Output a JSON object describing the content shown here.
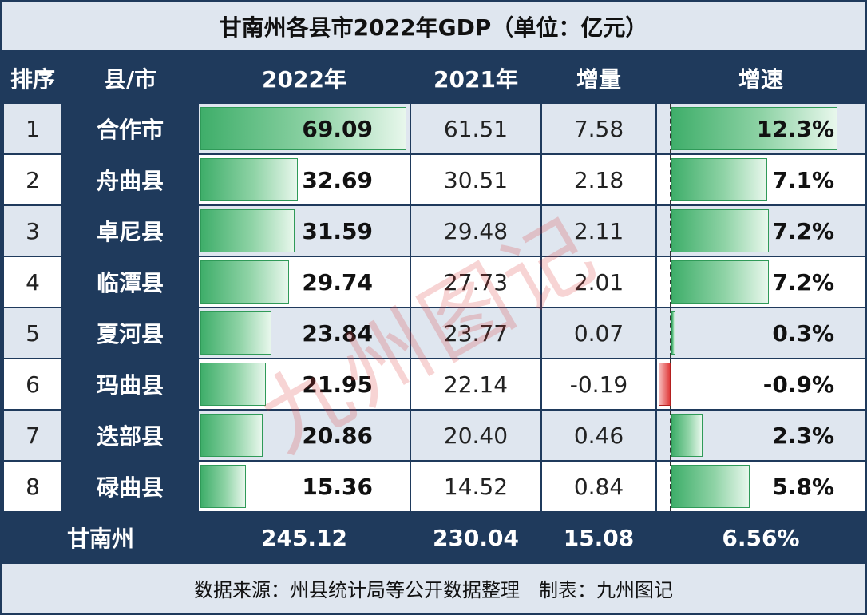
{
  "title": "甘南州各县市2022年GDP（单位：亿元）",
  "headers": [
    "排序",
    "县/市",
    "2022年",
    "2021年",
    "增量",
    "增速"
  ],
  "rows": [
    {
      "rank": "1",
      "name": "合作市",
      "gdp2022": "69.09",
      "gdp2021": "61.51",
      "increase": "7.58",
      "growth": "12.3%"
    },
    {
      "rank": "2",
      "name": "舟曲县",
      "gdp2022": "32.69",
      "gdp2021": "30.51",
      "increase": "2.18",
      "growth": "7.1%"
    },
    {
      "rank": "3",
      "name": "卓尼县",
      "gdp2022": "31.59",
      "gdp2021": "29.48",
      "increase": "2.11",
      "growth": "7.2%"
    },
    {
      "rank": "4",
      "name": "临潭县",
      "gdp2022": "29.74",
      "gdp2021": "27.73",
      "increase": "2.01",
      "growth": "7.2%"
    },
    {
      "rank": "5",
      "name": "夏河县",
      "gdp2022": "23.84",
      "gdp2021": "23.77",
      "increase": "0.07",
      "growth": "0.3%"
    },
    {
      "rank": "6",
      "name": "玛曲县",
      "gdp2022": "21.95",
      "gdp2021": "22.14",
      "increase": "-0.19",
      "growth": "-0.9%"
    },
    {
      "rank": "7",
      "name": "迭部县",
      "gdp2022": "20.86",
      "gdp2021": "20.40",
      "increase": "0.46",
      "growth": "2.3%"
    },
    {
      "rank": "8",
      "name": "碌曲县",
      "gdp2022": "15.36",
      "gdp2021": "14.52",
      "increase": "0.84",
      "growth": "5.8%"
    }
  ],
  "total": {
    "name": "甘南州",
    "gdp2022": "245.12",
    "gdp2021": "230.04",
    "increase": "15.08",
    "growth": "6.56%"
  },
  "source": "数据来源：州县统计局等公开数据整理　制表：九州图记",
  "watermark": "九州图记",
  "colors": {
    "header_bg": "#1f3a5c",
    "row_alt_bg": "#dfe6ef",
    "positive_bar": "#3fae6a",
    "negative_bar": "#e03b3b"
  },
  "chart_data": {
    "type": "table",
    "columns": [
      "排序",
      "县/市",
      "2022年",
      "2021年",
      "增量",
      "增速"
    ],
    "categories": [
      "合作市",
      "舟曲县",
      "卓尼县",
      "临潭县",
      "夏河县",
      "玛曲县",
      "迭部县",
      "碌曲县"
    ],
    "series": [
      {
        "name": "2022年",
        "values": [
          69.09,
          32.69,
          31.59,
          29.74,
          23.84,
          21.95,
          20.86,
          15.36
        ]
      },
      {
        "name": "2021年",
        "values": [
          61.51,
          30.51,
          29.48,
          27.73,
          23.77,
          22.14,
          20.4,
          14.52
        ]
      },
      {
        "name": "增量",
        "values": [
          7.58,
          2.18,
          2.11,
          2.01,
          0.07,
          -0.19,
          0.46,
          0.84
        ]
      },
      {
        "name": "增速",
        "values": [
          12.3,
          7.1,
          7.2,
          7.2,
          0.3,
          -0.9,
          2.3,
          5.8
        ]
      }
    ],
    "total": {
      "name": "甘南州",
      "2022年": 245.12,
      "2021年": 230.04,
      "增量": 15.08,
      "增速": 6.56
    }
  }
}
